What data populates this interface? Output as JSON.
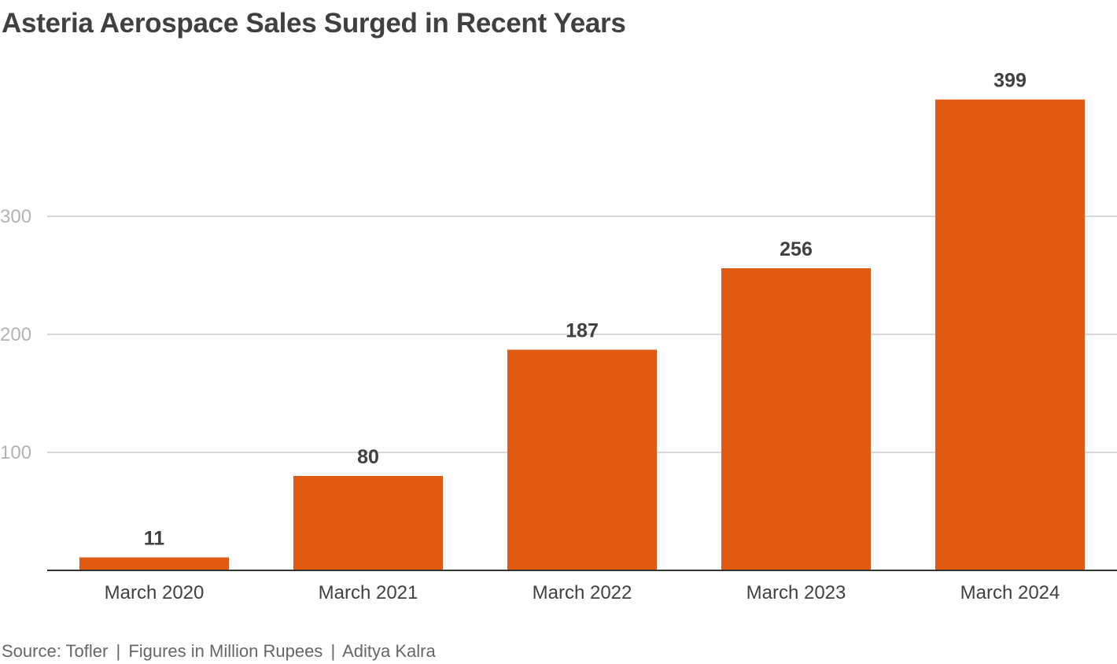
{
  "title": "Asteria Aerospace Sales Surged in Recent Years",
  "footer": {
    "source": "Source: Tofler",
    "note": "Figures in Million Rupees",
    "author": "Aditya Kalra",
    "separator": "|"
  },
  "colors": {
    "bar": "#e05a12",
    "grid": "#cccccc",
    "axis": "#333333",
    "tick_label": "#b3b3b3",
    "category_label": "#404040",
    "value_label": "#404040",
    "title": "#404040"
  },
  "chart_data": {
    "type": "bar",
    "categories": [
      "March 2020",
      "March 2021",
      "March 2022",
      "March 2023",
      "March 2024"
    ],
    "values": [
      11,
      80,
      187,
      256,
      399
    ],
    "data_labels": [
      "11",
      "80",
      "187",
      "256",
      "399"
    ],
    "yticks": [
      100,
      200,
      300
    ],
    "ylim": [
      0,
      399
    ],
    "grid": true,
    "legend": "none"
  }
}
